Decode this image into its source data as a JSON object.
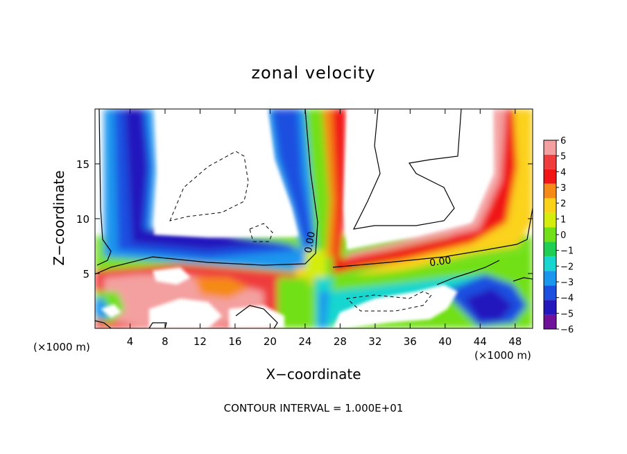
{
  "chart_data": {
    "type": "heatmap",
    "title": "zonal velocity",
    "xlabel": "X−coordinate",
    "ylabel": "Z−coordinate",
    "x_unit_label": "(×1000 m)",
    "z_unit_label": "(×1000 m)",
    "footer": "CONTOUR INTERVAL = 1.000E+01",
    "xlim": [
      0,
      50
    ],
    "ylim": [
      0,
      20
    ],
    "x_ticks": [
      4,
      8,
      12,
      16,
      20,
      24,
      28,
      32,
      36,
      40,
      44,
      48
    ],
    "x_tick_labels": [
      "4",
      "8",
      "12",
      "16",
      "20",
      "24",
      "28",
      "32",
      "36",
      "40",
      "44",
      "48"
    ],
    "y_ticks": [
      5,
      10,
      15
    ],
    "y_tick_labels": [
      "5",
      "10",
      "15"
    ],
    "contour_labels": [
      {
        "text": "0.00",
        "x": 24.9,
        "z": 7.8
      },
      {
        "text": "0.00",
        "x": 39.5,
        "z": 5.8
      }
    ],
    "colorbar": {
      "levels": [
        6,
        5,
        4,
        3,
        2,
        1,
        0,
        -1,
        -2,
        -3,
        -4,
        -5,
        -6
      ],
      "labels": [
        "6",
        "5",
        "4",
        "3",
        "2",
        "1",
        "0",
        "−1",
        "−2",
        "−3",
        "−4",
        "−5",
        "−6"
      ],
      "colors": [
        "#f4a0a0",
        "#ef3d3d",
        "#f11515",
        "#f68a18",
        "#fbd21a",
        "#d4ed0c",
        "#72e018",
        "#1fcf55",
        "#16d6cf",
        "#1a96ee",
        "#1c4fe0",
        "#2418bd",
        "#6f1299"
      ]
    },
    "grid": false,
    "legend": "colorbar-right",
    "field_note_free": true
  }
}
